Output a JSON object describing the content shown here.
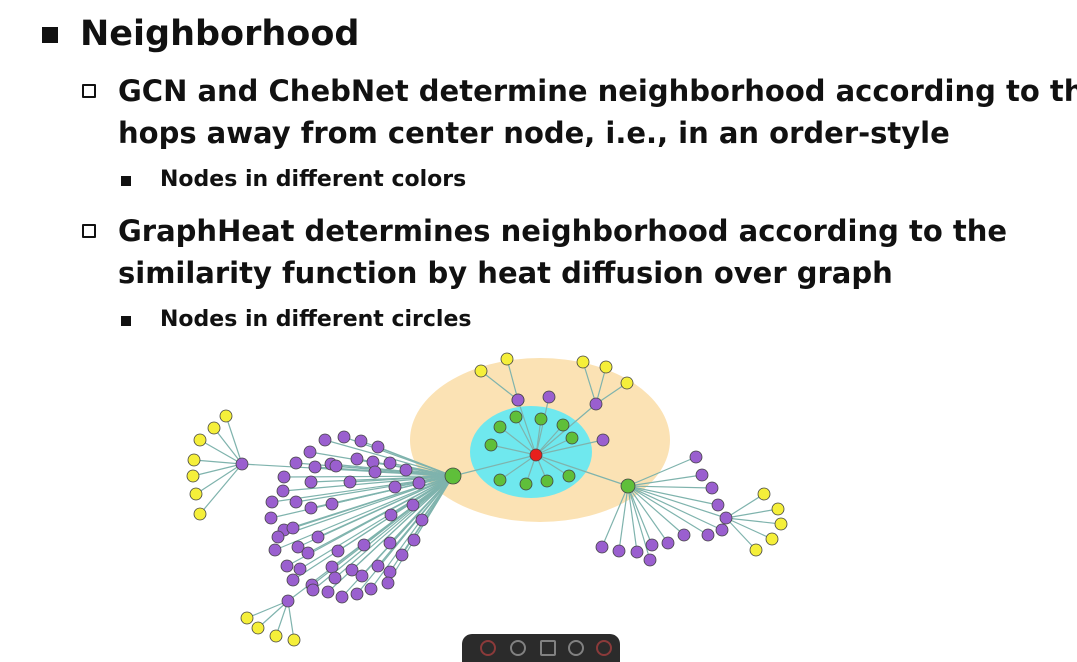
{
  "slide": {
    "heading": "Neighborhood",
    "items": [
      {
        "line1": "GCN and ChebNet determine neighborhood according to the",
        "line2": "hops away from center node, i.e., in an order-style",
        "sub": "Nodes in different colors"
      },
      {
        "line1": "GraphHeat determines neighborhood according to the",
        "line2": "similarity function by heat diffusion over graph",
        "sub": "Nodes in different circles"
      }
    ]
  },
  "colors": {
    "center_node": "#e8201d",
    "green_node": "#5fbf3a",
    "purple_node": "#9a5fcf",
    "yellow_node": "#f5ef3a",
    "outer_circle": "#fbe2b4",
    "inner_circle": "#6fe8ee",
    "edge": "#7fb3ad"
  }
}
